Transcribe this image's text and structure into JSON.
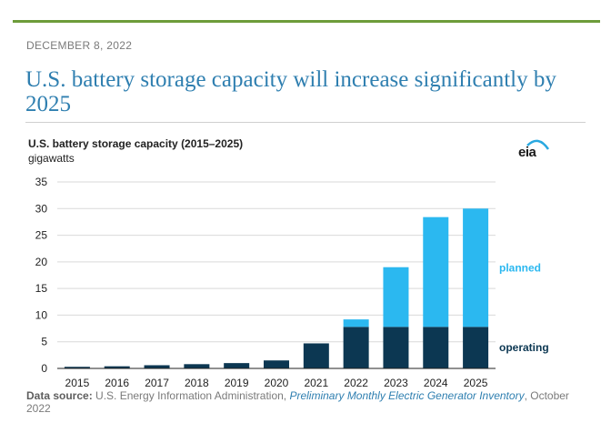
{
  "article": {
    "date": "DECEMBER 8, 2022",
    "headline": "U.S. battery storage capacity will increase significantly by 2025"
  },
  "logo": {
    "text": "eia",
    "icon": "eia-logo-icon",
    "arc_color": "#29a8e0"
  },
  "source": {
    "label": "Data source:",
    "text_before": " U.S. Energy Information Administration, ",
    "link": "Preliminary Monthly Electric Generator Inventory",
    "text_after": ", October 2022"
  },
  "chart_data": {
    "type": "bar",
    "stacked": true,
    "title": "U.S. battery storage capacity (2015–2025)",
    "ylabel": "gigawatts",
    "xlabel": "",
    "categories": [
      "2015",
      "2016",
      "2017",
      "2018",
      "2019",
      "2020",
      "2021",
      "2022",
      "2023",
      "2024",
      "2025"
    ],
    "ylim": [
      0,
      35
    ],
    "yticks": [
      0,
      5,
      10,
      15,
      20,
      25,
      30,
      35
    ],
    "grid": true,
    "series": [
      {
        "name": "operating",
        "color": "#0c3752",
        "values": [
          0.3,
          0.4,
          0.6,
          0.8,
          1.0,
          1.5,
          4.7,
          7.8,
          7.8,
          7.8,
          7.8
        ]
      },
      {
        "name": "planned",
        "color": "#2bb8f0",
        "values": [
          0,
          0,
          0,
          0,
          0,
          0,
          0,
          1.4,
          11.2,
          20.6,
          22.2
        ]
      }
    ],
    "legend": "right"
  }
}
